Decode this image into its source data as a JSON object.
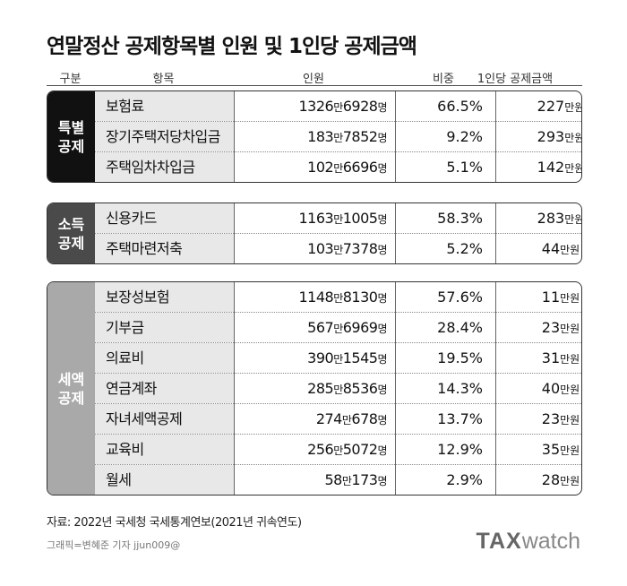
{
  "title": "연말정산 공제항목별 인원 및 1인당 공제금액",
  "headers": {
    "group": "구분",
    "item": "항목",
    "count": "인원",
    "ratio": "비중",
    "amount": "1인당 공제금액"
  },
  "unit": {
    "man": "만",
    "person": "명",
    "won": "만원"
  },
  "groups": [
    {
      "label": "특별 공제",
      "color": "#111111",
      "rows": [
        {
          "item": "보험료",
          "count_a": "1326",
          "count_b": "6928",
          "ratio": "66.5%",
          "amount": "227"
        },
        {
          "item": "장기주택저당차입금",
          "count_a": "183",
          "count_b": "7852",
          "ratio": "9.2%",
          "amount": "293"
        },
        {
          "item": "주택임차차입금",
          "count_a": "102",
          "count_b": "6696",
          "ratio": "5.1%",
          "amount": "142"
        }
      ]
    },
    {
      "label": "소득 공제",
      "color": "#4a4a4a",
      "rows": [
        {
          "item": "신용카드",
          "count_a": "1163",
          "count_b": "1005",
          "ratio": "58.3%",
          "amount": "283"
        },
        {
          "item": "주택마련저축",
          "count_a": "103",
          "count_b": "7378",
          "ratio": "5.2%",
          "amount": "44"
        }
      ]
    },
    {
      "label": "세액 공제",
      "color": "#a9a9a9",
      "rows": [
        {
          "item": "보장성보험",
          "count_a": "1148",
          "count_b": "8130",
          "ratio": "57.6%",
          "amount": "11"
        },
        {
          "item": "기부금",
          "count_a": "567",
          "count_b": "6969",
          "ratio": "28.4%",
          "amount": "23"
        },
        {
          "item": "의료비",
          "count_a": "390",
          "count_b": "1545",
          "ratio": "19.5%",
          "amount": "31"
        },
        {
          "item": "연금계좌",
          "count_a": "285",
          "count_b": "8536",
          "ratio": "14.3%",
          "amount": "40"
        },
        {
          "item": "자녀세액공제",
          "count_a": "274",
          "count_b": "678",
          "ratio": "13.7%",
          "amount": "23"
        },
        {
          "item": "교육비",
          "count_a": "256",
          "count_b": "5072",
          "ratio": "12.9%",
          "amount": "35"
        },
        {
          "item": "월세",
          "count_a": "58",
          "count_b": "173",
          "ratio": "2.9%",
          "amount": "28"
        }
      ]
    }
  ],
  "source": "자료: 2022년 국세청 국세통계연보(2021년 귀속연도)",
  "credit": "그래픽=변혜준 기자 jjun009@",
  "logo": {
    "bold": "TAX",
    "light": "watch"
  }
}
